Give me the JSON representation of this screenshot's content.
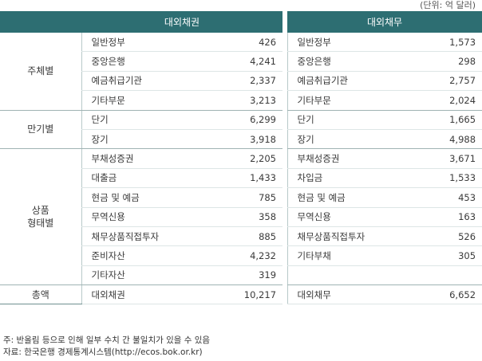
{
  "unit_note": "(단위: 억 달러)",
  "header": {
    "claims": "대외채권",
    "liabilities": "대외채무"
  },
  "sections": [
    {
      "label": "주체별",
      "rows": [
        {
          "claim_item": "일반정부",
          "claim_value": "426",
          "liab_item": "일반정부",
          "liab_value": "1,573"
        },
        {
          "claim_item": "중앙은행",
          "claim_value": "4,241",
          "liab_item": "중앙은행",
          "liab_value": "298"
        },
        {
          "claim_item": "예금취급기관",
          "claim_value": "2,337",
          "liab_item": "예금취급기관",
          "liab_value": "2,757"
        },
        {
          "claim_item": "기타부문",
          "claim_value": "3,213",
          "liab_item": "기타부문",
          "liab_value": "2,024"
        }
      ]
    },
    {
      "label": "만기별",
      "rows": [
        {
          "claim_item": "단기",
          "claim_value": "6,299",
          "liab_item": "단기",
          "liab_value": "1,665"
        },
        {
          "claim_item": "장기",
          "claim_value": "3,918",
          "liab_item": "장기",
          "liab_value": "4,988"
        }
      ]
    },
    {
      "label_line1": "상품",
      "label_line2": "형태별",
      "rows": [
        {
          "claim_item": "부채성증권",
          "claim_value": "2,205",
          "liab_item": "부채성증권",
          "liab_value": "3,671"
        },
        {
          "claim_item": "대출금",
          "claim_value": "1,433",
          "liab_item": "차입금",
          "liab_value": "1,533"
        },
        {
          "claim_item": "현금 및 예금",
          "claim_value": "785",
          "liab_item": "현금 및 예금",
          "liab_value": "453"
        },
        {
          "claim_item": "무역신용",
          "claim_value": "358",
          "liab_item": "무역신용",
          "liab_value": "163"
        },
        {
          "claim_item": "채무상품직접투자",
          "claim_value": "885",
          "liab_item": "채무상품직접투자",
          "liab_value": "526"
        },
        {
          "claim_item": "준비자산",
          "claim_value": "4,232",
          "liab_item": "기타부채",
          "liab_value": "305"
        },
        {
          "claim_item": "기타자산",
          "claim_value": "319",
          "liab_item": "",
          "liab_value": ""
        }
      ]
    },
    {
      "label": "총액",
      "rows": [
        {
          "claim_item": "대외채권",
          "claim_value": "10,217",
          "liab_item": "대외채무",
          "liab_value": "6,652"
        }
      ]
    }
  ],
  "notes": [
    "주: 반올림 등으로 인해 일부 수치 간 불일치가 있을 수 있음",
    "자료: 한국은행 경제통계시스템(http://ecos.bok.or.kr)"
  ]
}
